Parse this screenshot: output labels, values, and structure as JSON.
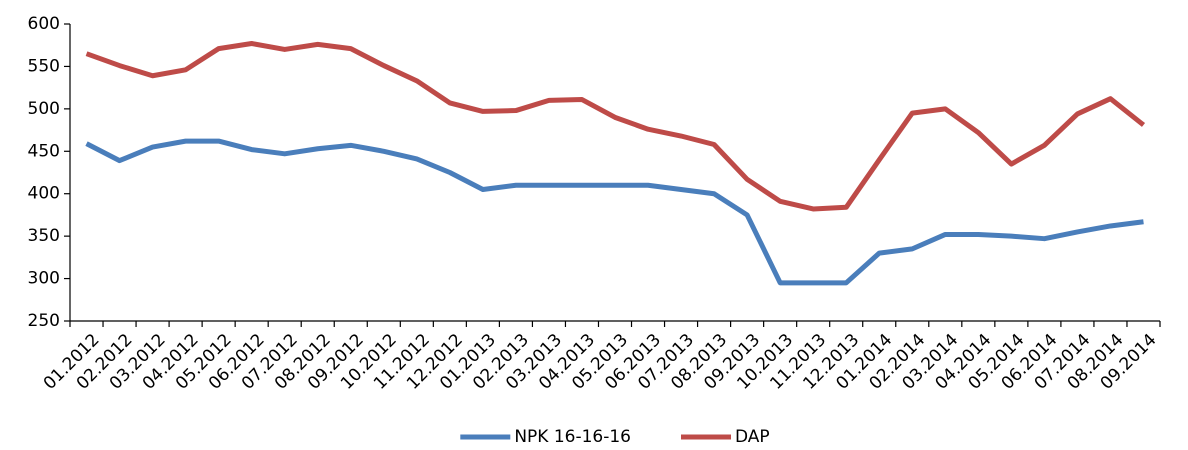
{
  "chart_data": {
    "type": "line",
    "categories": [
      "01.2012",
      "02.2012",
      "03.2012",
      "04.2012",
      "05.2012",
      "06.2012",
      "07.2012",
      "08.2012",
      "09.2012",
      "10.2012",
      "11.2012",
      "12.2012",
      "01.2013",
      "02.2013",
      "03.2013",
      "04.2013",
      "05.2013",
      "06.2013",
      "07.2013",
      "08.2013",
      "09.2013",
      "10.2013",
      "11.2013",
      "12.2013",
      "01.2014",
      "02.2014",
      "03.2014",
      "04.2014",
      "05.2014",
      "06.2014",
      "07.2014",
      "08.2014",
      "09.2014"
    ],
    "series": [
      {
        "name": "NPK 16-16-16",
        "color": "#4a7ebb",
        "values": [
          459,
          439,
          455,
          462,
          462,
          452,
          447,
          453,
          457,
          450,
          441,
          425,
          405,
          410,
          410,
          410,
          410,
          410,
          405,
          400,
          375,
          295,
          295,
          295,
          330,
          335,
          352,
          352,
          350,
          347,
          355,
          362,
          367
        ]
      },
      {
        "name": "DAP",
        "color": "#be4b48",
        "values": [
          565,
          551,
          539,
          546,
          571,
          577,
          570,
          576,
          571,
          551,
          533,
          507,
          497,
          498,
          510,
          511,
          490,
          476,
          468,
          458,
          417,
          391,
          382,
          384,
          440,
          495,
          500,
          472,
          435,
          457,
          494,
          512,
          481
        ]
      }
    ],
    "ylim": [
      250,
      600
    ],
    "yticks": [
      250,
      300,
      350,
      400,
      450,
      500,
      550,
      600
    ],
    "grid": false,
    "legend": "bottom"
  }
}
